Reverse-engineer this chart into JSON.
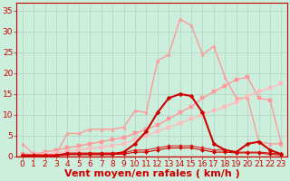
{
  "background_color": "#cceedd",
  "grid_color": "#aaccbb",
  "xlim": [
    -0.5,
    23.5
  ],
  "ylim": [
    0,
    37
  ],
  "yticks": [
    0,
    5,
    10,
    15,
    20,
    25,
    30,
    35
  ],
  "xticks": [
    0,
    1,
    2,
    3,
    4,
    5,
    6,
    7,
    8,
    9,
    10,
    11,
    12,
    13,
    14,
    15,
    16,
    17,
    18,
    19,
    20,
    21,
    22,
    23
  ],
  "xlabel": "Vent moyen/en rafales ( km/h )",
  "axis_color": "#cc0000",
  "tick_color": "#cc0000",
  "label_color": "#cc0000",
  "label_fontsize": 8,
  "tick_fontsize": 6.5,
  "series": [
    {
      "name": "light_pink_peaky",
      "x": [
        0,
        1,
        2,
        3,
        4,
        5,
        6,
        7,
        8,
        9,
        10,
        11,
        12,
        13,
        14,
        15,
        16,
        17,
        18,
        19,
        20,
        21,
        22,
        23
      ],
      "y": [
        3.0,
        0.5,
        0.5,
        0.5,
        5.5,
        5.5,
        6.5,
        6.5,
        6.5,
        7.0,
        11.0,
        10.5,
        23.0,
        24.5,
        33.0,
        31.5,
        24.5,
        26.5,
        19.0,
        14.0,
        14.0,
        3.5,
        3.0,
        3.0
      ],
      "color": "#ff9999",
      "linewidth": 1.0,
      "marker": "^",
      "markersize": 2.5,
      "zorder": 2
    },
    {
      "name": "light_pink_linear_upper",
      "x": [
        0,
        1,
        2,
        3,
        4,
        5,
        6,
        7,
        8,
        9,
        10,
        11,
        12,
        13,
        14,
        15,
        16,
        17,
        18,
        19,
        20,
        21,
        22,
        23
      ],
      "y": [
        0.5,
        0.5,
        1.0,
        1.5,
        2.0,
        2.5,
        3.0,
        3.5,
        4.0,
        4.5,
        5.5,
        6.5,
        7.5,
        9.0,
        10.5,
        12.0,
        14.0,
        15.5,
        17.0,
        18.5,
        19.0,
        14.0,
        13.5,
        3.0
      ],
      "color": "#ff9999",
      "linewidth": 1.0,
      "marker": "s",
      "markersize": 2.5,
      "zorder": 2
    },
    {
      "name": "light_pink_linear_lower",
      "x": [
        0,
        1,
        2,
        3,
        4,
        5,
        6,
        7,
        8,
        9,
        10,
        11,
        12,
        13,
        14,
        15,
        16,
        17,
        18,
        19,
        20,
        21,
        22,
        23
      ],
      "y": [
        0.2,
        0.4,
        0.6,
        0.8,
        1.2,
        1.5,
        1.8,
        2.2,
        2.6,
        3.0,
        4.0,
        5.0,
        6.0,
        7.0,
        8.0,
        9.0,
        10.0,
        11.0,
        12.0,
        13.0,
        14.5,
        15.5,
        16.5,
        17.5
      ],
      "color": "#ffbbbb",
      "linewidth": 1.0,
      "marker": "s",
      "markersize": 2.5,
      "zorder": 2
    },
    {
      "name": "dark_red_bell",
      "x": [
        0,
        1,
        2,
        3,
        4,
        5,
        6,
        7,
        8,
        9,
        10,
        11,
        12,
        13,
        14,
        15,
        16,
        17,
        18,
        19,
        20,
        21,
        22,
        23
      ],
      "y": [
        0.2,
        0.2,
        0.2,
        0.2,
        0.5,
        0.5,
        0.5,
        0.5,
        0.5,
        1.0,
        3.0,
        6.0,
        10.5,
        14.0,
        15.0,
        14.5,
        10.5,
        3.0,
        1.5,
        1.0,
        3.0,
        3.5,
        1.5,
        0.5
      ],
      "color": "#cc0000",
      "linewidth": 1.5,
      "marker": "D",
      "markersize": 2.5,
      "zorder": 5
    },
    {
      "name": "dark_red_flat",
      "x": [
        0,
        1,
        2,
        3,
        4,
        5,
        6,
        7,
        8,
        9,
        10,
        11,
        12,
        13,
        14,
        15,
        16,
        17,
        18,
        19,
        20,
        21,
        22,
        23
      ],
      "y": [
        0.2,
        0.2,
        0.2,
        0.2,
        0.5,
        0.5,
        0.5,
        0.5,
        0.5,
        0.5,
        1.0,
        1.0,
        1.5,
        2.0,
        2.0,
        2.0,
        1.5,
        1.0,
        1.0,
        0.8,
        0.8,
        0.8,
        0.5,
        0.3
      ],
      "color": "#cc0000",
      "linewidth": 0.8,
      "marker": "D",
      "markersize": 2.0,
      "zorder": 4
    },
    {
      "name": "dark_red_flat2",
      "x": [
        0,
        1,
        2,
        3,
        4,
        5,
        6,
        7,
        8,
        9,
        10,
        11,
        12,
        13,
        14,
        15,
        16,
        17,
        18,
        19,
        20,
        21,
        22,
        23
      ],
      "y": [
        0.3,
        0.3,
        0.3,
        0.3,
        0.8,
        0.8,
        0.8,
        0.8,
        0.8,
        0.8,
        1.5,
        1.5,
        2.0,
        2.5,
        2.5,
        2.5,
        2.0,
        1.5,
        1.5,
        1.0,
        1.0,
        1.0,
        0.8,
        0.5
      ],
      "color": "#dd2222",
      "linewidth": 0.8,
      "marker": "D",
      "markersize": 2.0,
      "zorder": 3
    }
  ]
}
